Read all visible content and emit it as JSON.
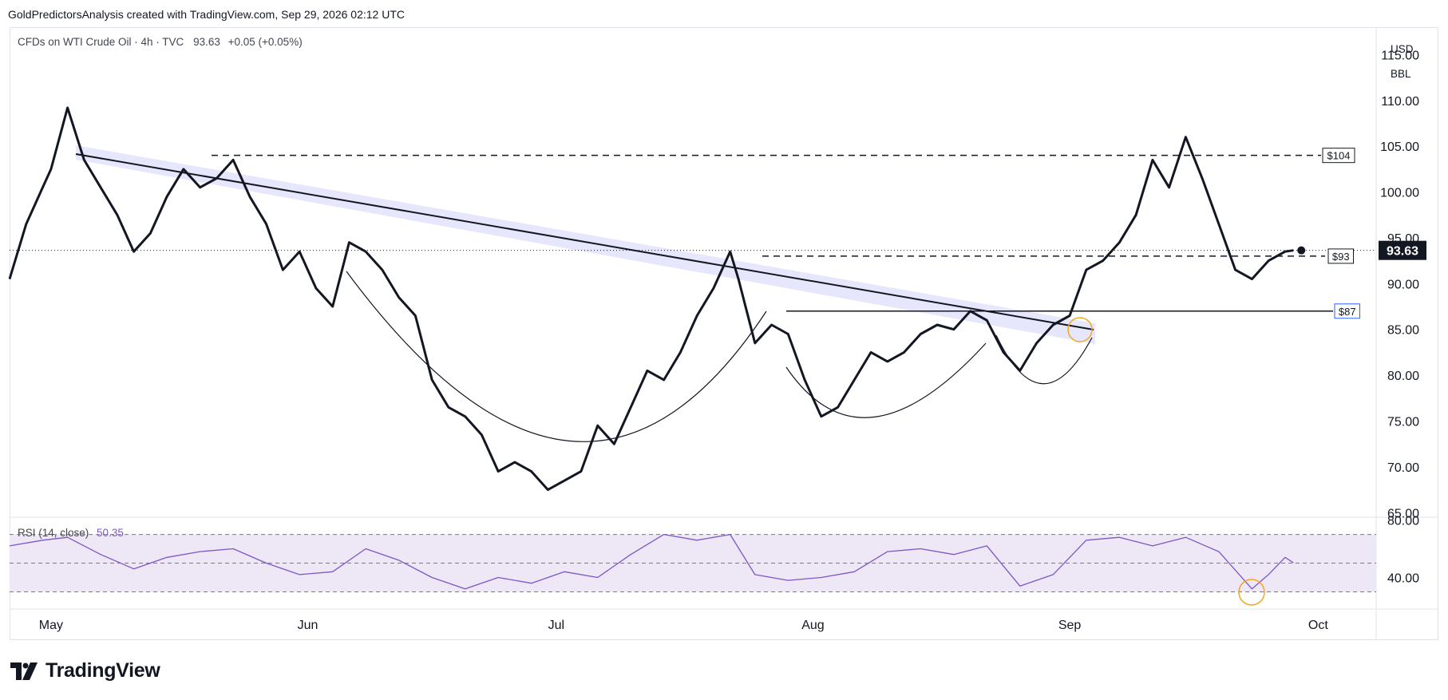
{
  "header": {
    "credit": "GoldPredictorsAnalysis created with TradingView.com, Sep 29, 2026 02:12 UTC"
  },
  "legend": {
    "symbol": "CFDs on WTI Crude Oil · 4h · TVC",
    "price": "93.63",
    "change": "+0.05 (+0.05%)"
  },
  "rsi_legend": {
    "label": "RSI (14, close)",
    "value": "50.35"
  },
  "units": {
    "currency": "USD",
    "unit": "BBL"
  },
  "branding": {
    "logo_text": "TradingView"
  },
  "colors": {
    "price_line": "#131722",
    "trendline_band": "#d1d4fa",
    "rsi_line": "#7e57c2",
    "rsi_band": "#ede7f6",
    "highlight_circle": "#f5a623",
    "label_box_87": "#2962ff",
    "last_price_badge": "#131722"
  },
  "chart_data": {
    "type": "line",
    "title": "CFDs on WTI Crude Oil · 4h · TVC",
    "xlabel": "",
    "ylabel": "",
    "x_ticks": [
      "May",
      "Jun",
      "Jul",
      "Aug",
      "Sep",
      "Oct"
    ],
    "y_ticks": [
      "115.00",
      "110.00",
      "105.00",
      "100.00",
      "95.00",
      "90.00",
      "85.00",
      "80.00",
      "75.00",
      "70.00",
      "65.00"
    ],
    "ylim": [
      64.5,
      118
    ],
    "x_range": [
      "2026-04-26",
      "2026-10-08"
    ],
    "last_price": 93.63,
    "last_price_label": "93.63",
    "grid": false,
    "price_series": {
      "name": "",
      "x": [
        "2026-04-26",
        "2026-04-28",
        "2026-04-30",
        "2026-05-01",
        "2026-05-03",
        "2026-05-05",
        "2026-05-07",
        "2026-05-09",
        "2026-05-11",
        "2026-05-13",
        "2026-05-15",
        "2026-05-17",
        "2026-05-19",
        "2026-05-21",
        "2026-05-23",
        "2026-05-25",
        "2026-05-27",
        "2026-05-29",
        "2026-05-31",
        "2026-06-02",
        "2026-06-04",
        "2026-06-06",
        "2026-06-08",
        "2026-06-10",
        "2026-06-12",
        "2026-06-14",
        "2026-06-16",
        "2026-06-18",
        "2026-06-20",
        "2026-06-22",
        "2026-06-24",
        "2026-06-26",
        "2026-06-28",
        "2026-06-30",
        "2026-07-02",
        "2026-07-04",
        "2026-07-06",
        "2026-07-08",
        "2026-07-10",
        "2026-07-12",
        "2026-07-14",
        "2026-07-16",
        "2026-07-18",
        "2026-07-20",
        "2026-07-22",
        "2026-07-23",
        "2026-07-25",
        "2026-07-27",
        "2026-07-29",
        "2026-07-31",
        "2026-08-02",
        "2026-08-04",
        "2026-08-06",
        "2026-08-08",
        "2026-08-10",
        "2026-08-12",
        "2026-08-14",
        "2026-08-16",
        "2026-08-18",
        "2026-08-20",
        "2026-08-22",
        "2026-08-24",
        "2026-08-26",
        "2026-08-28",
        "2026-08-30",
        "2026-09-01",
        "2026-09-03",
        "2026-09-05",
        "2026-09-07",
        "2026-09-09",
        "2026-09-11",
        "2026-09-13",
        "2026-09-15",
        "2026-09-17",
        "2026-09-19",
        "2026-09-21",
        "2026-09-23",
        "2026-09-25",
        "2026-09-27",
        "2026-09-28"
      ],
      "y": [
        90.5,
        96.5,
        100.5,
        102.5,
        109.2,
        103.5,
        100.5,
        97.5,
        93.5,
        95.5,
        99.5,
        102.5,
        100.5,
        101.5,
        103.5,
        99.5,
        96.5,
        91.5,
        93.5,
        89.5,
        87.5,
        94.5,
        93.5,
        91.5,
        88.5,
        86.5,
        79.5,
        76.5,
        75.5,
        73.5,
        69.5,
        70.5,
        69.5,
        67.5,
        68.5,
        69.5,
        74.5,
        72.5,
        76.5,
        80.5,
        79.5,
        82.5,
        86.5,
        89.5,
        93.5,
        90.5,
        83.5,
        85.5,
        84.5,
        79.5,
        75.5,
        76.5,
        79.5,
        82.5,
        81.5,
        82.5,
        84.5,
        85.5,
        85.0,
        87.0,
        86.0,
        82.5,
        80.5,
        83.5,
        85.5,
        86.5,
        91.5,
        92.5,
        94.5,
        97.5,
        103.5,
        100.5,
        106.0,
        101.5,
        96.5,
        91.5,
        90.5,
        92.5,
        93.5,
        93.63
      ]
    },
    "rsi": {
      "label": "RSI (14, close)",
      "current_value": 50.35,
      "levels": [
        70,
        50,
        30
      ],
      "ylim": [
        18,
        82
      ],
      "y_ticks": [
        "80.00",
        "40.00"
      ],
      "x": [
        "2026-04-26",
        "2026-04-30",
        "2026-05-03",
        "2026-05-07",
        "2026-05-11",
        "2026-05-15",
        "2026-05-19",
        "2026-05-23",
        "2026-05-27",
        "2026-05-31",
        "2026-06-04",
        "2026-06-08",
        "2026-06-12",
        "2026-06-16",
        "2026-06-20",
        "2026-06-24",
        "2026-06-28",
        "2026-07-02",
        "2026-07-06",
        "2026-07-10",
        "2026-07-14",
        "2026-07-18",
        "2026-07-22",
        "2026-07-25",
        "2026-07-29",
        "2026-08-02",
        "2026-08-06",
        "2026-08-10",
        "2026-08-14",
        "2026-08-18",
        "2026-08-22",
        "2026-08-26",
        "2026-08-30",
        "2026-09-03",
        "2026-09-07",
        "2026-09-11",
        "2026-09-15",
        "2026-09-19",
        "2026-09-23",
        "2026-09-25",
        "2026-09-27",
        "2026-09-28"
      ],
      "values": [
        62,
        66,
        68,
        56,
        46,
        54,
        58,
        60,
        50,
        42,
        44,
        60,
        52,
        40,
        32,
        40,
        36,
        44,
        40,
        56,
        70,
        66,
        70,
        42,
        38,
        40,
        44,
        58,
        60,
        56,
        62,
        34,
        42,
        66,
        68,
        62,
        68,
        58,
        32,
        42,
        54,
        50.35
      ]
    },
    "annotations": [
      {
        "type": "label",
        "text": "$104",
        "y": 104
      },
      {
        "type": "label",
        "text": "$93",
        "y": 93
      },
      {
        "type": "label",
        "text": "$87",
        "y": 87
      }
    ]
  }
}
